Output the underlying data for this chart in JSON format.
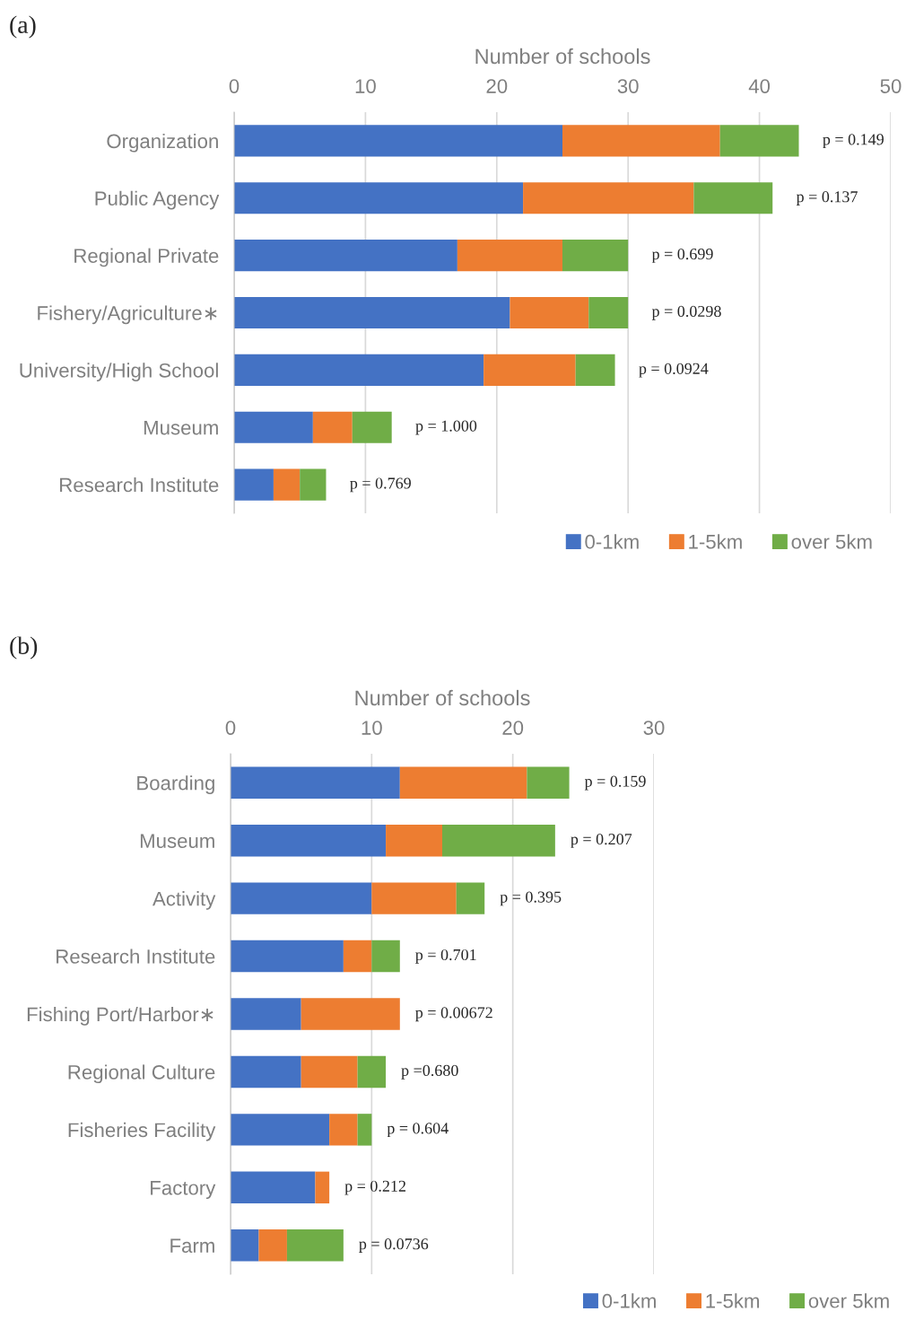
{
  "chart_data": [
    {
      "type": "bar",
      "orientation": "horizontal",
      "stacked": true,
      "xlabel": "Number of schools",
      "xlim": [
        0,
        50
      ],
      "xticks": [
        0,
        10,
        20,
        30,
        40,
        50
      ],
      "grid": "x",
      "legend": "bottom right",
      "categories": [
        "Organization",
        "Public Agency",
        "Regional Private",
        "Fishery/Agriculture∗",
        "University/High School",
        "Museum",
        "Research Institute"
      ],
      "series": [
        {
          "name": "0-1km",
          "color": "#4472c4",
          "values": [
            25,
            22,
            17,
            21,
            19,
            6,
            3
          ]
        },
        {
          "name": "1-5km",
          "color": "#ed7d31",
          "values": [
            12,
            13,
            8,
            6,
            7,
            3,
            2
          ]
        },
        {
          "name": "over 5km",
          "color": "#70ad47",
          "values": [
            6,
            6,
            5,
            3,
            3,
            3,
            2
          ]
        }
      ],
      "annotations": [
        "(a)",
        "p = 0.149",
        "p = 0.137",
        "p = 0.699",
        "p = 0.0298",
        "p = 0.0924",
        "p = 1.000",
        "p = 0.769"
      ]
    },
    {
      "type": "bar",
      "orientation": "horizontal",
      "stacked": true,
      "xlabel": "Number of schools",
      "xlim": [
        0,
        30
      ],
      "xticks": [
        0,
        10,
        20,
        30
      ],
      "grid": "x",
      "legend": "bottom right",
      "categories": [
        "Boarding",
        "Museum",
        "Activity",
        "Research Institute",
        "Fishing Port/Harbor∗",
        "Regional Culture",
        "Fisheries Facility",
        "Factory",
        "Farm"
      ],
      "series": [
        {
          "name": "0-1km",
          "color": "#4472c4",
          "values": [
            12,
            11,
            10,
            8,
            5,
            5,
            7,
            6,
            2
          ]
        },
        {
          "name": "1-5km",
          "color": "#ed7d31",
          "values": [
            9,
            4,
            6,
            2,
            7,
            4,
            2,
            1,
            2
          ]
        },
        {
          "name": "over 5km",
          "color": "#70ad47",
          "values": [
            3,
            8,
            2,
            2,
            0,
            2,
            1,
            0,
            4
          ]
        }
      ],
      "annotations": [
        "(b)",
        "p = 0.159",
        "p = 0.207",
        "p = 0.395",
        "p = 0.701",
        "p = 0.00672",
        "p =0.680",
        "p = 0.604",
        "p = 0.212",
        "p = 0.0736"
      ]
    }
  ]
}
